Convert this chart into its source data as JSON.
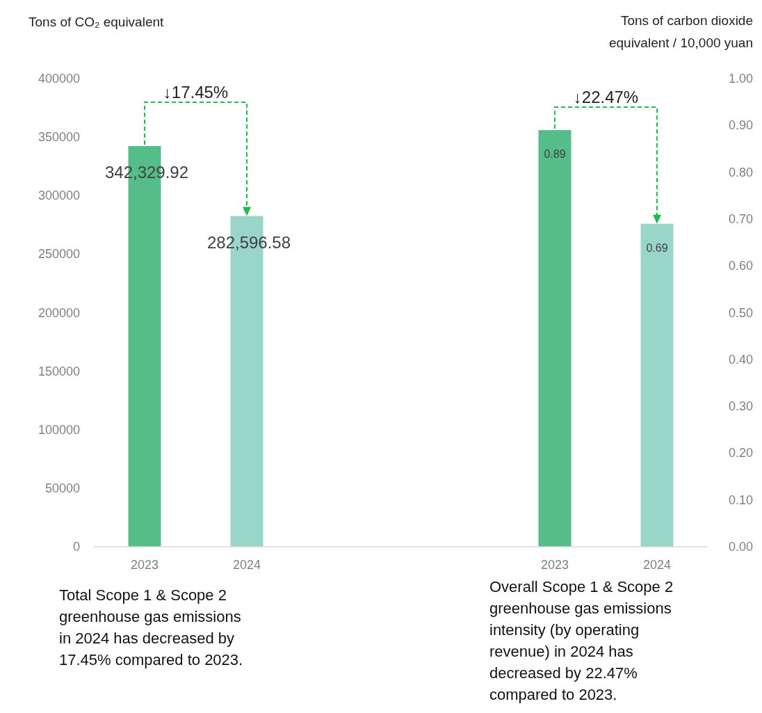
{
  "chart_data": [
    {
      "type": "bar",
      "ylabel": "Tons of CO₂ equivalent",
      "categories": [
        "2023",
        "2024"
      ],
      "series": [
        {
          "values": [
            342329.92,
            282596.58
          ],
          "colors": [
            "#55bd8a",
            "#99d5c9"
          ],
          "value_labels": [
            "342,329.92",
            "282,596.58"
          ]
        }
      ],
      "ylim": [
        0,
        400000
      ],
      "yticks": [
        0,
        50000,
        100000,
        150000,
        200000,
        250000,
        300000,
        350000,
        400000
      ],
      "grid": false,
      "annotations": [
        "↓17.45%",
        "Total Scope 1 & Scope 2 greenhouse gas emissions in 2024 has decreased by 17.45% compared to 2023."
      ]
    },
    {
      "type": "bar",
      "y2label": "Tons of carbon dioxide equivalent / 10,000 yuan",
      "categories": [
        "2023",
        "2024"
      ],
      "series": [
        {
          "axis": "y2",
          "values": [
            0.89,
            0.69
          ],
          "colors": [
            "#55bd8a",
            "#99d5c9"
          ],
          "value_labels": [
            "0.89",
            "0.69"
          ]
        }
      ],
      "y2lim": [
        0,
        1
      ],
      "y2ticks": [
        {
          "value": 0,
          "label": "0.00"
        },
        {
          "value": 0.1,
          "label": "0.10"
        },
        {
          "value": 0.2,
          "label": "0.20"
        },
        {
          "value": 0.3,
          "label": "0.30"
        },
        {
          "value": 0.4,
          "label": "0.40"
        },
        {
          "value": 0.5,
          "label": "0.50"
        },
        {
          "value": 0.6,
          "label": "0.60"
        },
        {
          "value": 0.7,
          "label": "0.70"
        },
        {
          "value": 0.8,
          "label": "0.80"
        },
        {
          "value": 0.9,
          "label": "0.90"
        },
        {
          "value": 1,
          "label": "1.00"
        }
      ],
      "grid": false,
      "annotations": [
        "↓22.47%",
        "Overall Scope 1 & Scope 2 greenhouse gas emissions intensity (by operating revenue) in 2024 has decreased by 22.47% compared to 2023."
      ]
    }
  ]
}
